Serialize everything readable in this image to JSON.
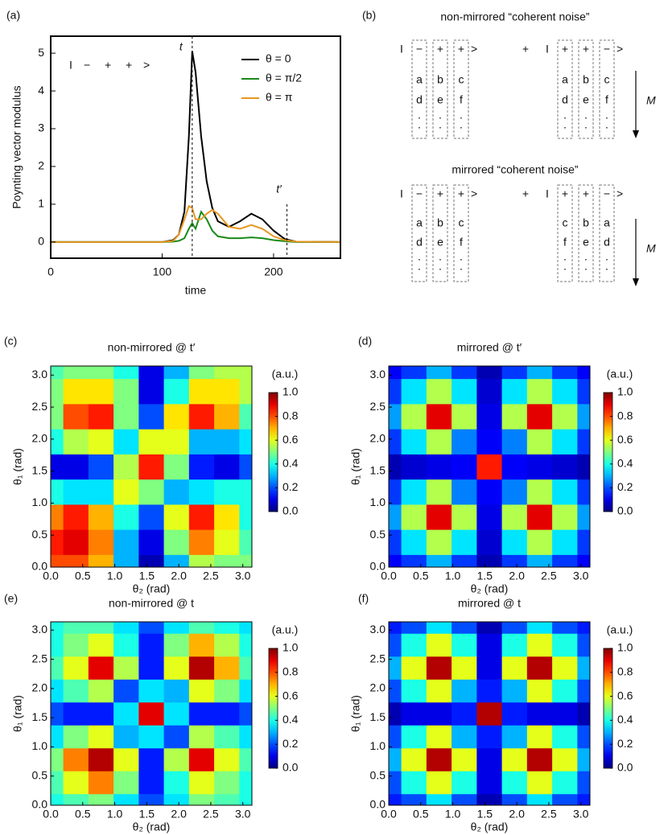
{
  "panel_labels": [
    "(a)",
    "(b)",
    "(c)",
    "(d)",
    "(e)",
    "(f)"
  ],
  "chart_data": [
    {
      "type": "line",
      "y_label": "Poynting vector modulus",
      "x_label": "time",
      "x": [
        0,
        100,
        110,
        115,
        120,
        124,
        127,
        130,
        135,
        140,
        145,
        150,
        160,
        170,
        180,
        190,
        200,
        210,
        220,
        260
      ],
      "series": [
        {
          "name": "θ = 0",
          "color": "#000000",
          "values": [
            0,
            0,
            0.05,
            0.2,
            0.8,
            2.8,
            5.05,
            4.5,
            2.8,
            1.6,
            0.9,
            0.55,
            0.4,
            0.55,
            0.75,
            0.6,
            0.3,
            0.08,
            0.01,
            0
          ]
        },
        {
          "name": "θ = π/2",
          "color": "#1a8a1a",
          "values": [
            0,
            0,
            0.01,
            0.03,
            0.1,
            0.35,
            0.5,
            0.35,
            0.8,
            0.6,
            0.3,
            0.15,
            0.1,
            0.1,
            0.12,
            0.1,
            0.05,
            0.02,
            0,
            0
          ]
        },
        {
          "name": "θ = π",
          "color": "#e8961e",
          "values": [
            0,
            0,
            0.03,
            0.2,
            0.6,
            0.95,
            0.9,
            0.6,
            0.6,
            0.75,
            0.85,
            0.75,
            0.4,
            0.35,
            0.45,
            0.35,
            0.15,
            0.05,
            0.01,
            0
          ]
        }
      ],
      "xlim": [
        0,
        260
      ],
      "ylim": [
        -0.43,
        5.45
      ],
      "xticks": [
        0,
        100,
        200
      ],
      "yticks": [
        0,
        1,
        2,
        3,
        4,
        5
      ],
      "annotations": [
        {
          "text": "t",
          "x": 127
        },
        {
          "text": "t′",
          "x": 212,
          "y": 1.0
        }
      ],
      "inset": {
        "open": "I",
        "signs": [
          "−",
          "+",
          "+"
        ],
        "colors": [
          "#1f4fd6",
          "#e02010",
          "#e02010"
        ],
        "close": ">"
      }
    },
    {
      "type": "heatmap",
      "title": "non-mirrored @ t′",
      "x_label": "θ₂ (rad)",
      "y_label": "θ₁ (rad)",
      "colormap": "jet",
      "clim": [
        0,
        1
      ],
      "cbar_label": "(a.u.)",
      "x": [
        0,
        0.393,
        0.785,
        1.178,
        1.571,
        1.963,
        2.356,
        2.749,
        3.142
      ],
      "y": [
        0,
        0.393,
        0.785,
        1.178,
        1.571,
        1.963,
        2.356,
        2.749,
        3.142
      ],
      "xlim": [
        0,
        3.142
      ],
      "ylim": [
        0,
        3.142
      ],
      "xticks": [
        {
          "value": 0,
          "label": "0.0"
        },
        {
          "value": 0.5,
          "label": "0.5"
        },
        {
          "value": 1,
          "label": "1.0"
        },
        {
          "value": 1.5,
          "label": "1.5"
        },
        {
          "value": 2,
          "label": "2.0"
        },
        {
          "value": 2.5,
          "label": "2.5"
        },
        {
          "value": 3,
          "label": "3.0"
        }
      ],
      "yticks": [
        {
          "value": 0,
          "label": "0.0"
        },
        {
          "value": 0.5,
          "label": "0.5"
        },
        {
          "value": 1,
          "label": "1.0"
        },
        {
          "value": 1.5,
          "label": "1.5"
        },
        {
          "value": 2,
          "label": "2.0"
        },
        {
          "value": 2.5,
          "label": "2.5"
        },
        {
          "value": 3,
          "label": "3.0"
        }
      ],
      "cbar_ticks": [
        {
          "value": 0,
          "label": "0.0"
        },
        {
          "value": 0.2,
          "label": "0.2"
        },
        {
          "value": 0.4,
          "label": "0.4"
        },
        {
          "value": 0.6,
          "label": "0.6"
        },
        {
          "value": 0.8,
          "label": "0.8"
        },
        {
          "value": 1,
          "label": "1.0"
        }
      ],
      "z": [
        [
          0.8,
          0.8,
          0.7,
          0.3,
          0.05,
          0.3,
          0.55,
          0.5,
          0.5
        ],
        [
          0.85,
          0.9,
          0.75,
          0.3,
          0.1,
          0.5,
          0.75,
          0.6,
          0.45
        ],
        [
          0.75,
          0.85,
          0.7,
          0.4,
          0.2,
          0.6,
          0.85,
          0.65,
          0.4
        ],
        [
          0.4,
          0.35,
          0.35,
          0.6,
          0.5,
          0.3,
          0.35,
          0.4,
          0.4
        ],
        [
          0.1,
          0.1,
          0.2,
          0.55,
          0.85,
          0.5,
          0.15,
          0.1,
          0.2
        ],
        [
          0.4,
          0.55,
          0.6,
          0.35,
          0.6,
          0.6,
          0.3,
          0.3,
          0.35
        ],
        [
          0.5,
          0.8,
          0.85,
          0.5,
          0.2,
          0.65,
          0.85,
          0.7,
          0.45
        ],
        [
          0.5,
          0.65,
          0.65,
          0.5,
          0.1,
          0.4,
          0.65,
          0.65,
          0.55
        ],
        [
          0.45,
          0.5,
          0.5,
          0.4,
          0.1,
          0.3,
          0.5,
          0.55,
          0.55
        ]
      ]
    },
    {
      "type": "heatmap",
      "title": "mirrored @ t′",
      "x_label": "θ₂ (rad)",
      "y_label": "θ₁ (rad)",
      "colormap": "jet",
      "clim": [
        0,
        1
      ],
      "cbar_label": "(a.u.)",
      "x": [
        0,
        0.393,
        0.785,
        1.178,
        1.571,
        1.963,
        2.356,
        2.749,
        3.142
      ],
      "y": [
        0,
        0.393,
        0.785,
        1.178,
        1.571,
        1.963,
        2.356,
        2.749,
        3.142
      ],
      "xlim": [
        0,
        3.142
      ],
      "ylim": [
        0,
        3.142
      ],
      "xticks": [
        {
          "value": 0,
          "label": "0.0"
        },
        {
          "value": 0.5,
          "label": "0.5"
        },
        {
          "value": 1,
          "label": "1.0"
        },
        {
          "value": 1.5,
          "label": "1.5"
        },
        {
          "value": 2,
          "label": "2.0"
        },
        {
          "value": 2.5,
          "label": "2.5"
        },
        {
          "value": 3,
          "label": "3.0"
        }
      ],
      "yticks": [
        {
          "value": 0,
          "label": "0.0"
        },
        {
          "value": 0.5,
          "label": "0.5"
        },
        {
          "value": 1,
          "label": "1.0"
        },
        {
          "value": 1.5,
          "label": "1.5"
        },
        {
          "value": 2,
          "label": "2.0"
        },
        {
          "value": 2.5,
          "label": "2.5"
        },
        {
          "value": 3,
          "label": "3.0"
        }
      ],
      "cbar_ticks": [
        {
          "value": 0,
          "label": "0.0"
        },
        {
          "value": 0.2,
          "label": "0.2"
        },
        {
          "value": 0.4,
          "label": "0.4"
        },
        {
          "value": 0.6,
          "label": "0.6"
        },
        {
          "value": 0.8,
          "label": "0.8"
        },
        {
          "value": 1,
          "label": "1.0"
        }
      ],
      "z": [
        [
          0.12,
          0.18,
          0.3,
          0.18,
          0.05,
          0.18,
          0.3,
          0.18,
          0.12
        ],
        [
          0.18,
          0.35,
          0.55,
          0.35,
          0.08,
          0.35,
          0.55,
          0.35,
          0.18
        ],
        [
          0.28,
          0.55,
          0.9,
          0.55,
          0.1,
          0.55,
          0.9,
          0.55,
          0.28
        ],
        [
          0.18,
          0.35,
          0.55,
          0.25,
          0.12,
          0.25,
          0.55,
          0.35,
          0.18
        ],
        [
          0.05,
          0.08,
          0.1,
          0.12,
          0.85,
          0.12,
          0.1,
          0.08,
          0.05
        ],
        [
          0.18,
          0.35,
          0.55,
          0.25,
          0.12,
          0.25,
          0.55,
          0.35,
          0.18
        ],
        [
          0.28,
          0.55,
          0.9,
          0.55,
          0.1,
          0.55,
          0.9,
          0.55,
          0.28
        ],
        [
          0.18,
          0.35,
          0.55,
          0.35,
          0.08,
          0.35,
          0.55,
          0.35,
          0.18
        ],
        [
          0.12,
          0.18,
          0.3,
          0.18,
          0.05,
          0.18,
          0.3,
          0.18,
          0.12
        ]
      ]
    },
    {
      "type": "heatmap",
      "title": "non-mirrored @ t",
      "x_label": "θ₂ (rad)",
      "y_label": "θ₁ (rad)",
      "colormap": "jet",
      "clim": [
        0,
        1
      ],
      "cbar_label": "(a.u.)",
      "x": [
        0,
        0.393,
        0.785,
        1.178,
        1.571,
        1.963,
        2.356,
        2.749,
        3.142
      ],
      "y": [
        0,
        0.393,
        0.785,
        1.178,
        1.571,
        1.963,
        2.356,
        2.749,
        3.142
      ],
      "xlim": [
        0,
        3.142
      ],
      "ylim": [
        0,
        3.142
      ],
      "xticks": [
        {
          "value": 0,
          "label": "0.0"
        },
        {
          "value": 0.5,
          "label": "0.5"
        },
        {
          "value": 1,
          "label": "1.0"
        },
        {
          "value": 1.5,
          "label": "1.5"
        },
        {
          "value": 2,
          "label": "2.0"
        },
        {
          "value": 2.5,
          "label": "2.5"
        },
        {
          "value": 3,
          "label": "3.0"
        }
      ],
      "yticks": [
        {
          "value": 0,
          "label": "0.0"
        },
        {
          "value": 0.5,
          "label": "0.5"
        },
        {
          "value": 1,
          "label": "1.0"
        },
        {
          "value": 1.5,
          "label": "1.5"
        },
        {
          "value": 2,
          "label": "2.0"
        },
        {
          "value": 2.5,
          "label": "2.5"
        },
        {
          "value": 3,
          "label": "3.0"
        }
      ],
      "cbar_ticks": [
        {
          "value": 0,
          "label": "0.0"
        },
        {
          "value": 0.2,
          "label": "0.2"
        },
        {
          "value": 0.4,
          "label": "0.4"
        },
        {
          "value": 0.6,
          "label": "0.6"
        },
        {
          "value": 0.8,
          "label": "0.8"
        },
        {
          "value": 1,
          "label": "1.0"
        }
      ],
      "z": [
        [
          0.4,
          0.45,
          0.5,
          0.35,
          0.2,
          0.35,
          0.5,
          0.45,
          0.4
        ],
        [
          0.45,
          0.6,
          0.75,
          0.5,
          0.15,
          0.4,
          0.6,
          0.5,
          0.4
        ],
        [
          0.5,
          0.75,
          0.95,
          0.6,
          0.15,
          0.55,
          0.9,
          0.6,
          0.45
        ],
        [
          0.35,
          0.5,
          0.6,
          0.3,
          0.35,
          0.2,
          0.55,
          0.45,
          0.35
        ],
        [
          0.2,
          0.15,
          0.15,
          0.35,
          0.9,
          0.35,
          0.15,
          0.15,
          0.2
        ],
        [
          0.35,
          0.45,
          0.55,
          0.2,
          0.35,
          0.3,
          0.6,
          0.5,
          0.35
        ],
        [
          0.45,
          0.6,
          0.9,
          0.55,
          0.15,
          0.6,
          0.95,
          0.7,
          0.45
        ],
        [
          0.4,
          0.5,
          0.6,
          0.4,
          0.15,
          0.5,
          0.7,
          0.55,
          0.4
        ],
        [
          0.4,
          0.45,
          0.45,
          0.35,
          0.2,
          0.35,
          0.45,
          0.4,
          0.35
        ]
      ]
    },
    {
      "type": "heatmap",
      "title": "mirrored @ t",
      "x_label": "θ₂ (rad)",
      "y_label": "θ₁ (rad)",
      "colormap": "jet",
      "clim": [
        0,
        1
      ],
      "cbar_label": "(a.u.)",
      "x": [
        0,
        0.393,
        0.785,
        1.178,
        1.571,
        1.963,
        2.356,
        2.749,
        3.142
      ],
      "y": [
        0,
        0.393,
        0.785,
        1.178,
        1.571,
        1.963,
        2.356,
        2.749,
        3.142
      ],
      "xlim": [
        0,
        3.142
      ],
      "ylim": [
        0,
        3.142
      ],
      "xticks": [
        {
          "value": 0,
          "label": "0.0"
        },
        {
          "value": 0.5,
          "label": "0.5"
        },
        {
          "value": 1,
          "label": "1.0"
        },
        {
          "value": 1.5,
          "label": "1.5"
        },
        {
          "value": 2,
          "label": "2.0"
        },
        {
          "value": 2.5,
          "label": "2.5"
        },
        {
          "value": 3,
          "label": "3.0"
        }
      ],
      "yticks": [
        {
          "value": 0,
          "label": "0.0"
        },
        {
          "value": 0.5,
          "label": "0.5"
        },
        {
          "value": 1,
          "label": "1.0"
        },
        {
          "value": 1.5,
          "label": "1.5"
        },
        {
          "value": 2,
          "label": "2.0"
        },
        {
          "value": 2.5,
          "label": "2.5"
        },
        {
          "value": 3,
          "label": "3.0"
        }
      ],
      "cbar_ticks": [
        {
          "value": 0,
          "label": "0.0"
        },
        {
          "value": 0.2,
          "label": "0.2"
        },
        {
          "value": 0.4,
          "label": "0.4"
        },
        {
          "value": 0.6,
          "label": "0.6"
        },
        {
          "value": 0.8,
          "label": "0.8"
        },
        {
          "value": 1,
          "label": "1.0"
        }
      ],
      "z": [
        [
          0.15,
          0.2,
          0.35,
          0.2,
          0.05,
          0.2,
          0.35,
          0.2,
          0.15
        ],
        [
          0.2,
          0.4,
          0.6,
          0.4,
          0.1,
          0.4,
          0.6,
          0.4,
          0.2
        ],
        [
          0.3,
          0.6,
          0.95,
          0.6,
          0.1,
          0.6,
          0.95,
          0.6,
          0.3
        ],
        [
          0.2,
          0.4,
          0.6,
          0.3,
          0.15,
          0.3,
          0.6,
          0.4,
          0.2
        ],
        [
          0.05,
          0.1,
          0.1,
          0.15,
          0.95,
          0.15,
          0.1,
          0.1,
          0.05
        ],
        [
          0.2,
          0.4,
          0.6,
          0.3,
          0.15,
          0.3,
          0.6,
          0.4,
          0.2
        ],
        [
          0.3,
          0.6,
          0.95,
          0.6,
          0.1,
          0.6,
          0.95,
          0.6,
          0.3
        ],
        [
          0.2,
          0.4,
          0.6,
          0.4,
          0.1,
          0.4,
          0.6,
          0.4,
          0.2
        ],
        [
          0.15,
          0.2,
          0.35,
          0.2,
          0.05,
          0.2,
          0.35,
          0.2,
          0.15
        ]
      ]
    }
  ],
  "diagram": {
    "plus": "+",
    "arrow_label": "M",
    "sections": [
      {
        "title": "non-mirrored “coherent noise”",
        "terms": [
          {
            "open": "I",
            "close": ">",
            "signs": [
              "−",
              "+",
              "+"
            ],
            "colors": [
              "#1f4fd6",
              "#e02010",
              "#e02010"
            ],
            "columns": [
              [
                "a",
                "d",
                "·",
                "·"
              ],
              [
                "b",
                "e",
                "·",
                "·"
              ],
              [
                "c",
                "f",
                "·",
                "·"
              ]
            ]
          },
          {
            "open": "I",
            "close": ">",
            "signs": [
              "+",
              "+",
              "−"
            ],
            "colors": [
              "#e02010",
              "#e02010",
              "#1f4fd6"
            ],
            "columns": [
              [
                "a",
                "d",
                "·",
                "·"
              ],
              [
                "b",
                "e",
                "·",
                "·"
              ],
              [
                "c",
                "f",
                "·",
                "·"
              ]
            ]
          }
        ]
      },
      {
        "title": "mirrored “coherent noise”",
        "terms": [
          {
            "open": "I",
            "close": ">",
            "signs": [
              "−",
              "+",
              "+"
            ],
            "colors": [
              "#1f4fd6",
              "#e02010",
              "#e02010"
            ],
            "columns": [
              [
                "a",
                "d",
                "·",
                "·"
              ],
              [
                "b",
                "e",
                "·",
                "·"
              ],
              [
                "c",
                "f",
                "·",
                "·"
              ]
            ]
          },
          {
            "open": "I",
            "close": ">",
            "signs": [
              "+",
              "+",
              "−"
            ],
            "colors": [
              "#e02010",
              "#e02010",
              "#1f4fd6"
            ],
            "columns": [
              [
                "c",
                "f",
                "·",
                "·"
              ],
              [
                "b",
                "e",
                "·",
                "·"
              ],
              [
                "a",
                "d",
                "·",
                "·"
              ]
            ]
          }
        ]
      }
    ]
  }
}
